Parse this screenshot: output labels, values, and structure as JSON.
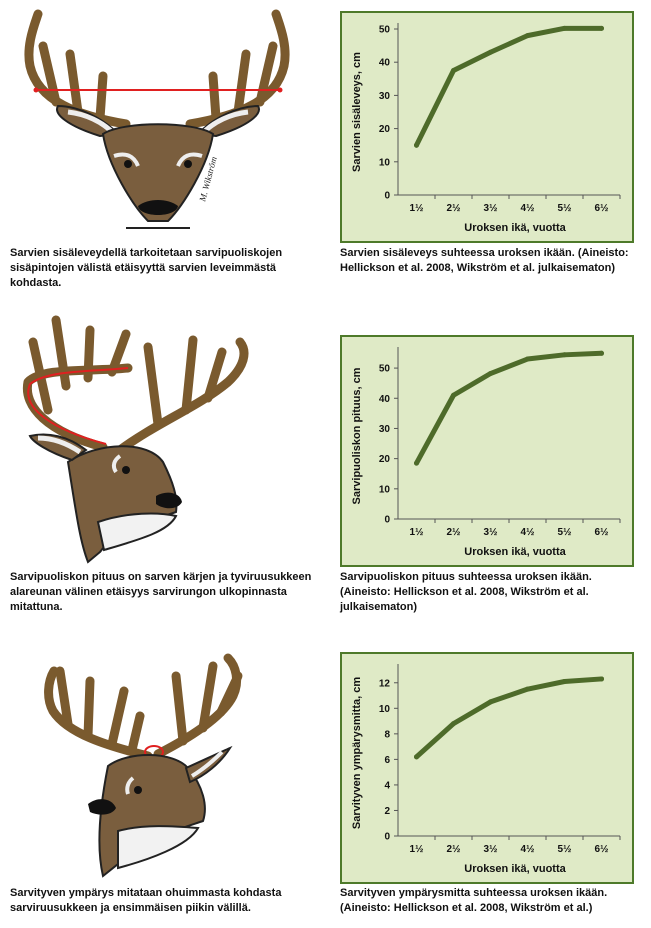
{
  "panels": [
    {
      "left_caption": "Sarvien sisäleveydellä tarkoitetaan sarvipuoliskojen sisäpintojen välistä etäisyyttä sarvien leveimmästä kohdasta.",
      "right_caption": "Sarvien sisäleveys suhteessa uroksen ikään. (Aineisto: Hellickson et al. 2008, Wikström et al. julkaisematon)",
      "signature": "M. Wikström"
    },
    {
      "left_caption": "Sarvipuoliskon pituus on sarven kärjen ja tyviruusukkeen alareunan välinen etäisyys sarvirungon ulkopinnasta mitattuna.",
      "right_caption": "Sarvipuoliskon pituus suhteessa uroksen ikään. (Aineisto: Hellickson et al. 2008, Wikström et al. julkaisematon)"
    },
    {
      "left_caption": "Sarvityven ympärys mitataan ohuimmasta kohdasta sarviruusukkeen ja ensimmäisen piikin välillä.",
      "right_caption": "Sarvityven ympärysmitta suhteessa uroksen ikään. (Aineisto: Hellickson et al. 2008, Wikström et al.)"
    }
  ],
  "colors": {
    "plot_bg": "#dfeac6",
    "plot_border": "#4e7a2a",
    "line": "#4e6b2a",
    "antler": "#7a5a2e",
    "fur": "#7a5e3e",
    "measure": "#e02020"
  },
  "chart_data": [
    {
      "type": "line",
      "categories": [
        "1½",
        "2½",
        "3½",
        "4½",
        "5½",
        "6½"
      ],
      "values": [
        15,
        37.5,
        43,
        48,
        50.2,
        50.2
      ],
      "xlabel": "Uroksen ikä, vuotta",
      "ylabel": "Sarvien sisäleveys, cm",
      "ylim": [
        0,
        50
      ],
      "yticks": [
        "0",
        "10",
        "20",
        "30",
        "40",
        "50"
      ],
      "grid": false
    },
    {
      "type": "line",
      "categories": [
        "1½",
        "2½",
        "3½",
        "4½",
        "5½",
        "6½"
      ],
      "values": [
        18.5,
        41,
        48.2,
        53,
        54.4,
        54.9
      ],
      "xlabel": "Uroksen ikä, vuotta",
      "ylabel": "Sarvipuoliskon pituus, cm",
      "ylim": [
        0,
        55
      ],
      "yticks": [
        "0",
        "10",
        "20",
        "30",
        "40",
        "50"
      ],
      "grid": false
    },
    {
      "type": "line",
      "categories": [
        "1½",
        "2½",
        "3½",
        "4½",
        "5½",
        "6½"
      ],
      "values": [
        6.2,
        8.8,
        10.5,
        11.5,
        12.1,
        12.3
      ],
      "xlabel": "Uroksen ikä, vuotta",
      "ylabel": "Sarvityven ympärysmitta, cm",
      "ylim": [
        0,
        13
      ],
      "yticks": [
        "0",
        "2",
        "4",
        "6",
        "8",
        "10",
        "12"
      ],
      "grid": false
    }
  ]
}
